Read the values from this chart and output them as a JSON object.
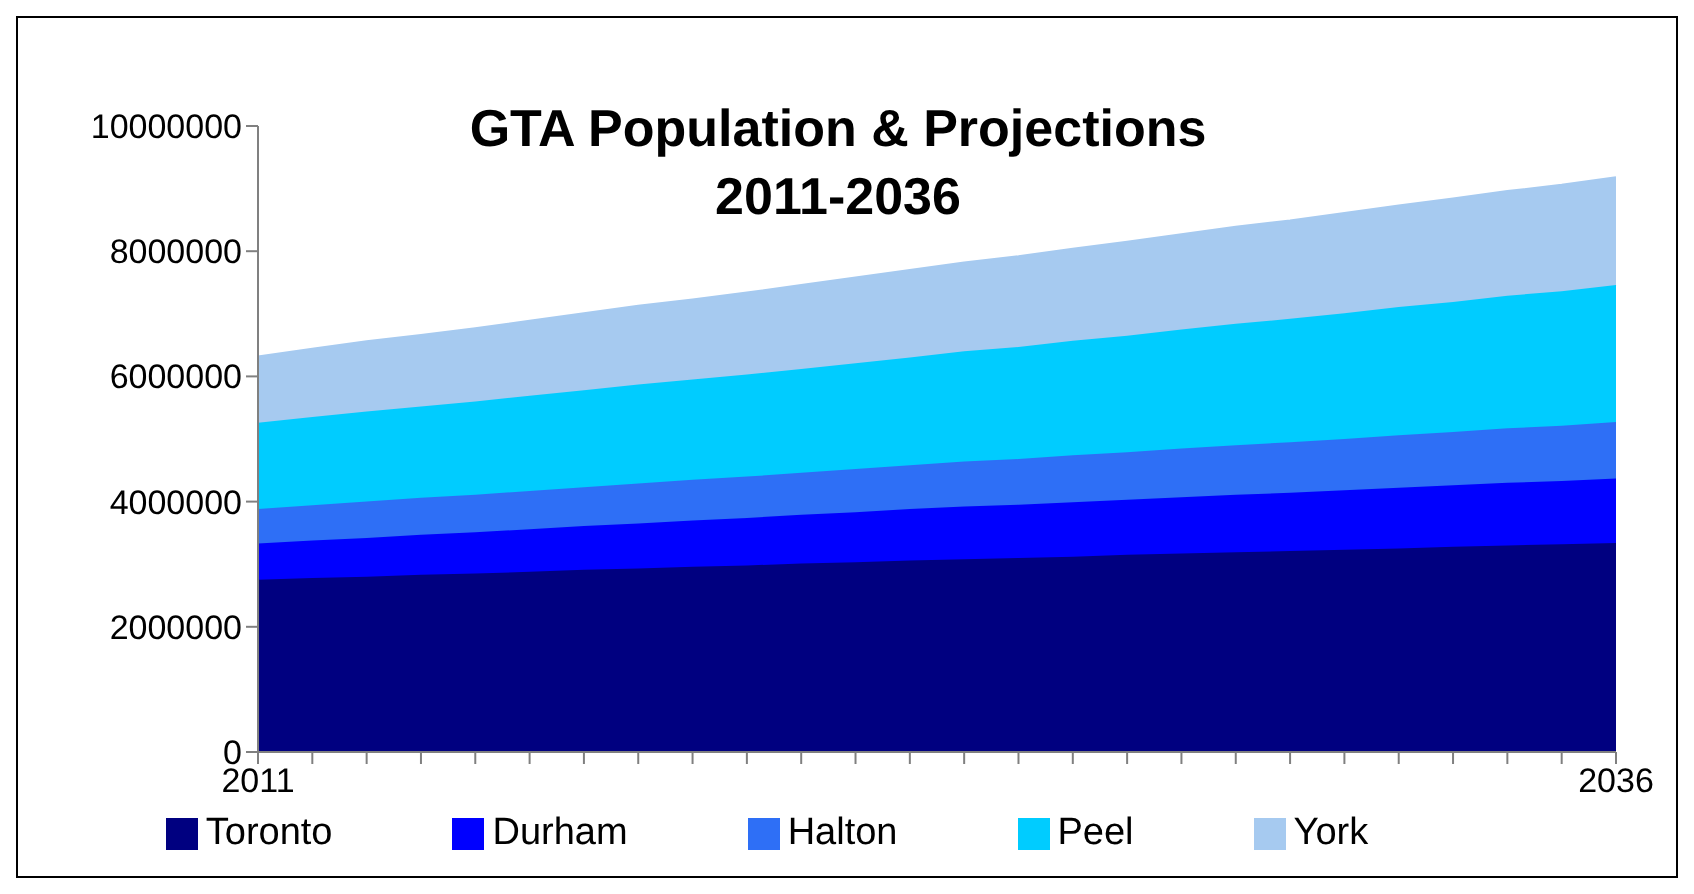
{
  "chart_data": {
    "type": "area",
    "stacked": true,
    "title": "GTA Population & Projections\n2011-2036",
    "categories": [
      "2011",
      null,
      null,
      null,
      null,
      null,
      null,
      null,
      null,
      null,
      null,
      null,
      null,
      null,
      null,
      null,
      null,
      null,
      null,
      null,
      null,
      null,
      null,
      null,
      null,
      "2036"
    ],
    "series": [
      {
        "name": "Toronto",
        "color": "#000080",
        "values": [
          2750000,
          2780000,
          2800000,
          2830000,
          2850000,
          2880000,
          2910000,
          2930000,
          2960000,
          2980000,
          3010000,
          3030000,
          3060000,
          3080000,
          3100000,
          3120000,
          3150000,
          3170000,
          3190000,
          3210000,
          3230000,
          3250000,
          3280000,
          3300000,
          3320000,
          3340000
        ]
      },
      {
        "name": "Durham",
        "color": "#0000ff",
        "values": [
          580000,
          600000,
          620000,
          640000,
          660000,
          680000,
          700000,
          720000,
          740000,
          760000,
          780000,
          800000,
          820000,
          840000,
          850000,
          870000,
          880000,
          900000,
          920000,
          930000,
          950000,
          970000,
          980000,
          1000000,
          1010000,
          1030000
        ]
      },
      {
        "name": "Halton",
        "color": "#2e6ff6",
        "values": [
          550000,
          560000,
          580000,
          590000,
          600000,
          610000,
          620000,
          640000,
          650000,
          660000,
          670000,
          690000,
          700000,
          720000,
          730000,
          750000,
          760000,
          780000,
          790000,
          810000,
          820000,
          840000,
          850000,
          870000,
          880000,
          900000
        ]
      },
      {
        "name": "Peel",
        "color": "#00ccff",
        "values": [
          1380000,
          1410000,
          1440000,
          1460000,
          1490000,
          1520000,
          1550000,
          1580000,
          1600000,
          1630000,
          1660000,
          1690000,
          1720000,
          1760000,
          1790000,
          1830000,
          1860000,
          1900000,
          1940000,
          1970000,
          2010000,
          2050000,
          2080000,
          2120000,
          2150000,
          2190000
        ]
      },
      {
        "name": "York",
        "color": "#a6caf0",
        "values": [
          1060000,
          1090000,
          1120000,
          1140000,
          1170000,
          1200000,
          1230000,
          1260000,
          1280000,
          1310000,
          1340000,
          1370000,
          1400000,
          1420000,
          1450000,
          1470000,
          1500000,
          1520000,
          1550000,
          1570000,
          1600000,
          1620000,
          1650000,
          1670000,
          1700000,
          1720000
        ]
      }
    ],
    "ylim": [
      0,
      10000000
    ],
    "yticks": [
      0,
      2000000,
      4000000,
      6000000,
      8000000,
      10000000
    ],
    "legend": "bottom"
  }
}
